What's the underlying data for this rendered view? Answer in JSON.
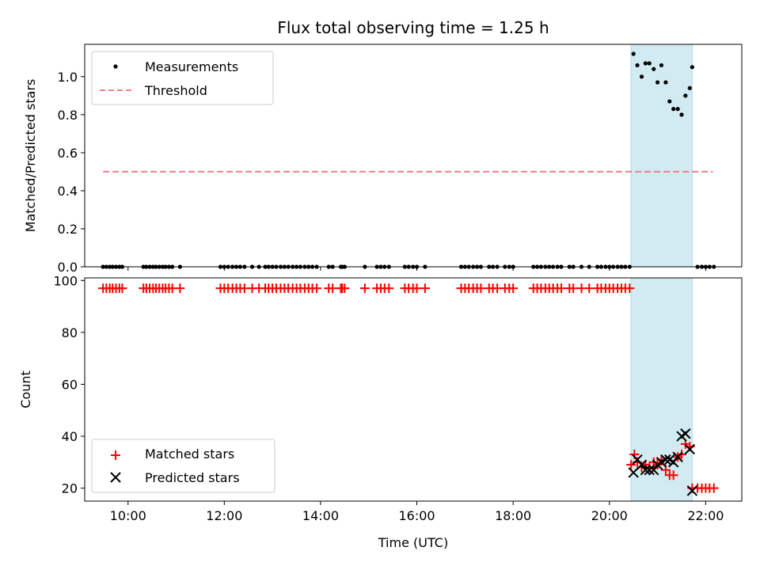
{
  "chart_data": [
    {
      "type": "scatter",
      "title": "Flux total observing time = 1.25 h",
      "xlabel": "",
      "ylabel": "Matched/Predicted stars",
      "xlim": [
        9.1,
        22.75
      ],
      "ylim": [
        0.0,
        1.17
      ],
      "yticks": [
        "0.0",
        "0.2",
        "0.4",
        "0.6",
        "0.8",
        "1.0"
      ],
      "highlight_span": [
        20.45,
        21.72
      ],
      "highlight_color": "#add8e6",
      "legend_position": "upper left",
      "series": [
        {
          "name": "Measurements",
          "kind": "scatter",
          "color": "#000000",
          "marker": "dot",
          "x": [
            9.48,
            9.55,
            9.62,
            9.68,
            9.75,
            9.82,
            9.88,
            10.32,
            10.38,
            10.45,
            10.52,
            10.58,
            10.65,
            10.72,
            10.78,
            10.85,
            10.92,
            11.08,
            11.92,
            12.0,
            12.08,
            12.17,
            12.25,
            12.33,
            12.42,
            12.58,
            12.72,
            12.85,
            12.92,
            13.0,
            13.08,
            13.17,
            13.25,
            13.33,
            13.42,
            13.5,
            13.58,
            13.67,
            13.75,
            13.83,
            13.92,
            14.17,
            14.25,
            14.42,
            14.45,
            14.5,
            14.92,
            15.17,
            15.25,
            15.33,
            15.42,
            15.75,
            15.83,
            15.92,
            16.0,
            16.17,
            16.92,
            17.0,
            17.08,
            17.17,
            17.25,
            17.33,
            17.5,
            17.58,
            17.67,
            17.83,
            17.92,
            18.0,
            18.42,
            18.5,
            18.58,
            18.67,
            18.75,
            18.83,
            18.92,
            19.0,
            19.17,
            19.25,
            19.42,
            19.58,
            19.75,
            19.83,
            19.92,
            20.0,
            20.08,
            20.17,
            20.25,
            20.33,
            20.42,
            20.5,
            20.58,
            20.67,
            20.75,
            20.83,
            20.92,
            21.0,
            21.08,
            21.17,
            21.25,
            21.33,
            21.42,
            21.5,
            21.58,
            21.67,
            21.72,
            21.83,
            21.92,
            22.0,
            22.08,
            22.17
          ],
          "y": [
            0,
            0,
            0,
            0,
            0,
            0,
            0,
            0,
            0,
            0,
            0,
            0,
            0,
            0,
            0,
            0,
            0,
            0,
            0,
            0,
            0,
            0,
            0,
            0,
            0,
            0,
            0,
            0,
            0,
            0,
            0,
            0,
            0,
            0,
            0,
            0,
            0,
            0,
            0,
            0,
            0,
            0,
            0,
            0,
            0,
            0,
            0,
            0,
            0,
            0,
            0,
            0,
            0,
            0,
            0,
            0,
            0,
            0,
            0,
            0,
            0,
            0,
            0,
            0,
            0,
            0,
            0,
            0,
            0,
            0,
            0,
            0,
            0,
            0,
            0,
            0,
            0,
            0,
            0,
            0,
            0,
            0,
            0,
            0,
            0,
            0,
            0,
            0,
            0,
            1.12,
            1.06,
            1.0,
            1.07,
            1.07,
            1.04,
            0.97,
            1.06,
            0.97,
            0.87,
            0.83,
            0.83,
            0.8,
            0.9,
            0.94,
            1.05,
            0,
            0,
            0,
            0,
            0
          ]
        },
        {
          "name": "Threshold",
          "kind": "line",
          "color": "#f08080",
          "dash": true,
          "x": [
            9.48,
            22.15
          ],
          "y": [
            0.5,
            0.5
          ]
        }
      ]
    },
    {
      "type": "scatter",
      "title": "",
      "xlabel": "Time (UTC)",
      "ylabel": "Count",
      "xlim": [
        9.1,
        22.75
      ],
      "ylim": [
        15,
        101
      ],
      "xticks": [
        {
          "v": 10,
          "label": "10:00"
        },
        {
          "v": 12,
          "label": "12:00"
        },
        {
          "v": 14,
          "label": "14:00"
        },
        {
          "v": 16,
          "label": "16:00"
        },
        {
          "v": 18,
          "label": "18:00"
        },
        {
          "v": 20,
          "label": "20:00"
        },
        {
          "v": 22,
          "label": "22:00"
        }
      ],
      "yticks": [
        "20",
        "40",
        "60",
        "80",
        "100"
      ],
      "highlight_span": [
        20.45,
        21.72
      ],
      "highlight_color": "#add8e6",
      "legend_position": "lower left",
      "series": [
        {
          "name": "Matched stars",
          "kind": "scatter",
          "color": "#ff0000",
          "marker": "plus",
          "x": [
            9.48,
            9.55,
            9.62,
            9.68,
            9.75,
            9.82,
            9.88,
            10.32,
            10.38,
            10.45,
            10.52,
            10.58,
            10.65,
            10.72,
            10.78,
            10.85,
            10.92,
            11.08,
            11.92,
            12.0,
            12.08,
            12.17,
            12.25,
            12.33,
            12.42,
            12.58,
            12.72,
            12.85,
            12.92,
            13.0,
            13.08,
            13.17,
            13.25,
            13.33,
            13.42,
            13.5,
            13.58,
            13.67,
            13.75,
            13.83,
            13.92,
            14.17,
            14.25,
            14.42,
            14.45,
            14.5,
            14.92,
            15.17,
            15.25,
            15.33,
            15.42,
            15.75,
            15.83,
            15.92,
            16.0,
            16.17,
            16.92,
            17.0,
            17.08,
            17.17,
            17.25,
            17.33,
            17.5,
            17.58,
            17.67,
            17.83,
            17.92,
            18.0,
            18.42,
            18.5,
            18.58,
            18.67,
            18.75,
            18.83,
            18.92,
            19.0,
            19.17,
            19.25,
            19.42,
            19.58,
            19.75,
            19.83,
            19.92,
            20.0,
            20.08,
            20.17,
            20.25,
            20.33,
            20.42,
            20.45,
            20.52,
            20.58,
            20.67,
            20.75,
            20.83,
            20.92,
            21.0,
            21.08,
            21.17,
            21.25,
            21.33,
            21.42,
            21.5,
            21.58,
            21.67,
            21.72,
            21.83,
            21.92,
            22.0,
            22.08,
            22.17
          ],
          "y": [
            97,
            97,
            97,
            97,
            97,
            97,
            97,
            97,
            97,
            97,
            97,
            97,
            97,
            97,
            97,
            97,
            97,
            97,
            97,
            97,
            97,
            97,
            97,
            97,
            97,
            97,
            97,
            97,
            97,
            97,
            97,
            97,
            97,
            97,
            97,
            97,
            97,
            97,
            97,
            97,
            97,
            97,
            97,
            97,
            97,
            97,
            97,
            97,
            97,
            97,
            97,
            97,
            97,
            97,
            97,
            97,
            97,
            97,
            97,
            97,
            97,
            97,
            97,
            97,
            97,
            97,
            97,
            97,
            97,
            97,
            97,
            97,
            97,
            97,
            97,
            97,
            97,
            97,
            97,
            97,
            97,
            97,
            97,
            97,
            97,
            97,
            97,
            97,
            97,
            29,
            33,
            30,
            28,
            29,
            28,
            30,
            29,
            31,
            27,
            25,
            25,
            32,
            33,
            37,
            36,
            20,
            20,
            20,
            20,
            20,
            20
          ]
        },
        {
          "name": "Predicted stars",
          "kind": "scatter",
          "color": "#000000",
          "marker": "x",
          "x": [
            20.5,
            20.58,
            20.67,
            20.75,
            20.83,
            20.92,
            21.0,
            21.08,
            21.17,
            21.25,
            21.33,
            21.42,
            21.5,
            21.58,
            21.67,
            21.72
          ],
          "y": [
            26,
            31,
            29,
            27,
            27,
            27,
            29,
            30,
            31,
            31,
            30,
            32,
            40,
            41,
            35,
            19
          ]
        }
      ]
    }
  ]
}
